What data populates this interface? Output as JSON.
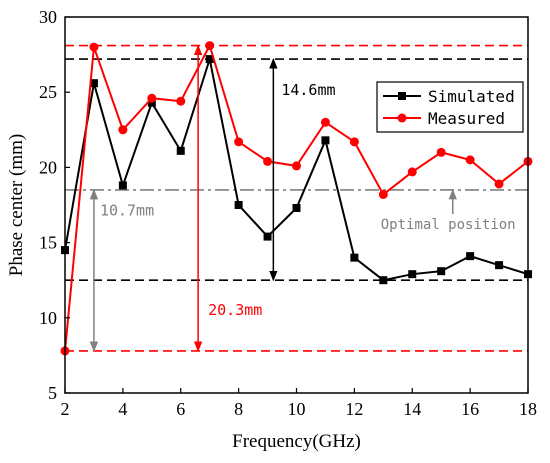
{
  "chart_data": {
    "type": "line",
    "xlabel": "Frequency(GHz)",
    "ylabel": "Phase center (mm)",
    "xlim": [
      2,
      18
    ],
    "ylim": [
      5,
      30
    ],
    "xticks": [
      2,
      4,
      6,
      8,
      10,
      12,
      14,
      16,
      18
    ],
    "yticks": [
      5,
      10,
      15,
      20,
      25,
      30
    ],
    "x": [
      2,
      3,
      4,
      5,
      6,
      7,
      8,
      9,
      10,
      11,
      12,
      13,
      14,
      15,
      16,
      17,
      18
    ],
    "series": [
      {
        "name": "Simulated",
        "color": "#000000",
        "marker": "square",
        "values": [
          14.5,
          25.6,
          18.8,
          24.3,
          21.1,
          27.2,
          17.5,
          15.4,
          17.3,
          21.8,
          14.0,
          12.5,
          12.9,
          13.1,
          14.1,
          13.5,
          12.9
        ]
      },
      {
        "name": "Measured",
        "color": "#ff0000",
        "marker": "circle",
        "values": [
          7.8,
          28.0,
          22.5,
          24.6,
          24.4,
          28.1,
          21.7,
          20.4,
          20.1,
          23.0,
          21.7,
          18.2,
          19.7,
          21.0,
          20.5,
          18.9,
          20.4
        ]
      }
    ],
    "reference_lines": [
      {
        "y": 28.1,
        "color": "#ff0000",
        "style": "dashed"
      },
      {
        "y": 27.2,
        "color": "#000000",
        "style": "dashed"
      },
      {
        "y": 18.5,
        "color": "#808080",
        "style": "dashdot"
      },
      {
        "y": 12.5,
        "color": "#000000",
        "style": "dashed"
      },
      {
        "y": 7.8,
        "color": "#ff0000",
        "style": "dashed"
      }
    ],
    "annotations": [
      {
        "text": "14.6mm",
        "color": "#000000",
        "x": 9.2,
        "y_from": 12.5,
        "y_to": 27.2
      },
      {
        "text": "10.7mm",
        "color": "#808080",
        "x": 3.0,
        "y_from": 7.8,
        "y_to": 18.5
      },
      {
        "text": "20.3mm",
        "color": "#ff0000",
        "x": 6.6,
        "y_from": 7.8,
        "y_to": 28.1
      },
      {
        "text": "Optimal position",
        "color": "#808080",
        "x": 15.4,
        "y_from": 16.9,
        "y_to": 18.5
      }
    ],
    "legend": {
      "placement": "top-right"
    }
  }
}
